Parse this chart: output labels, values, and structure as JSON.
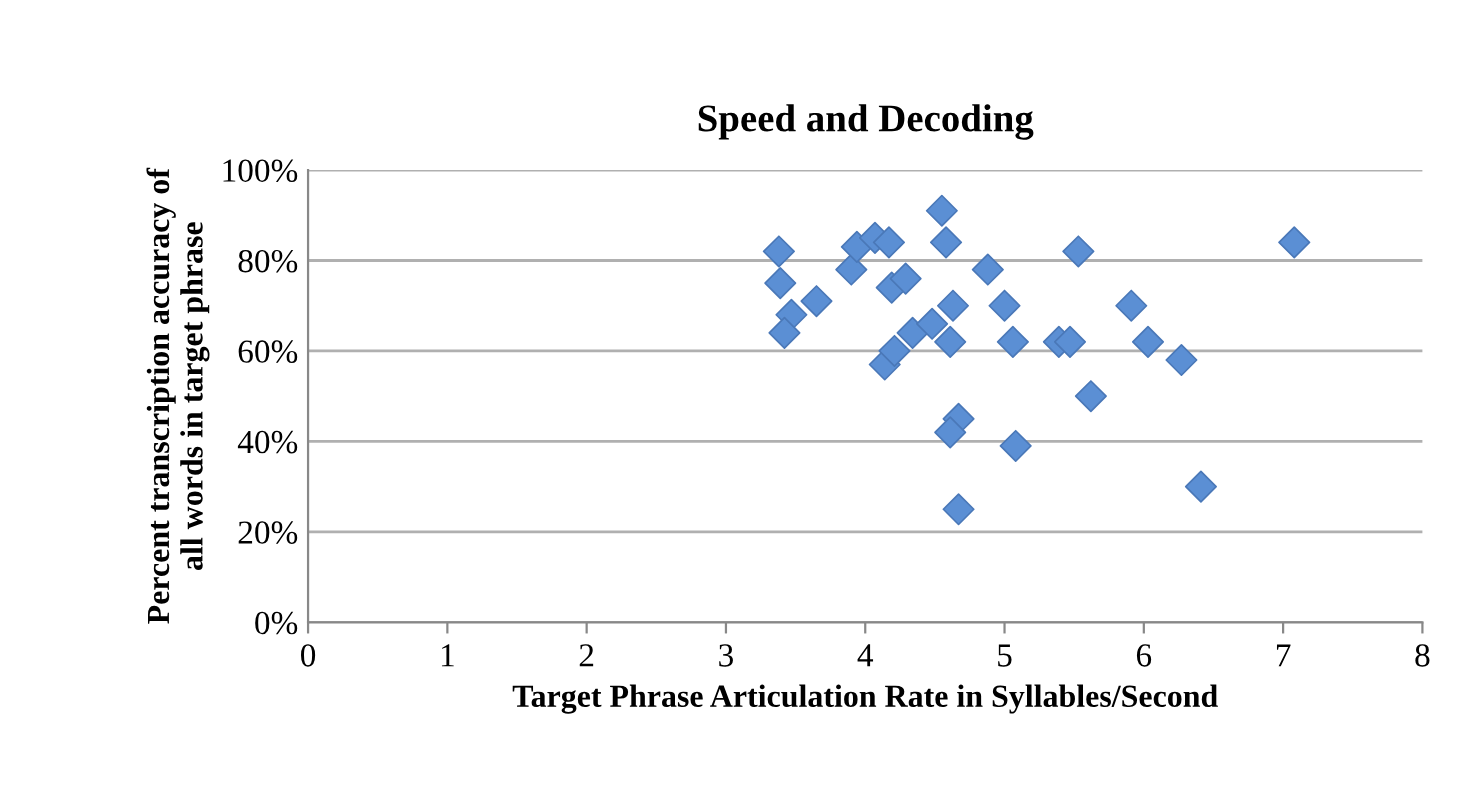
{
  "chart_data": {
    "type": "scatter",
    "title": "Speed and Decoding",
    "xlabel": "Target Phrase Articulation Rate in Syllables/Second",
    "ylabel": "Percent transcription accuracy of\nall words in target phrase",
    "x": [
      3.38,
      3.39,
      3.47,
      3.42,
      3.65,
      3.9,
      3.94,
      4.07,
      4.17,
      4.19,
      4.29,
      4.14,
      4.21,
      4.34,
      4.48,
      4.55,
      4.58,
      4.63,
      4.61,
      4.88,
      5.0,
      5.06,
      4.67,
      4.61,
      5.08,
      4.67,
      5.53,
      5.39,
      5.47,
      5.62,
      5.91,
      6.03,
      6.27,
      6.41,
      7.08
    ],
    "series": [
      {
        "color": "#5b8fd4",
        "values": [
          0.82,
          0.75,
          0.68,
          0.64,
          0.71,
          0.78,
          0.83,
          0.85,
          0.84,
          0.74,
          0.76,
          0.57,
          0.6,
          0.64,
          0.66,
          0.91,
          0.84,
          0.7,
          0.62,
          0.78,
          0.7,
          0.62,
          0.45,
          0.42,
          0.39,
          0.25,
          0.82,
          0.62,
          0.62,
          0.5,
          0.7,
          0.62,
          0.58,
          0.3,
          0.84
        ]
      }
    ],
    "xlim": [
      0,
      8
    ],
    "xticks": [
      0,
      1,
      2,
      3,
      4,
      5,
      6,
      7,
      8
    ],
    "ylim": [
      0,
      1
    ],
    "yticks": [
      {
        "value": 0,
        "label": "0%"
      },
      {
        "value": 0.2,
        "label": "20%"
      },
      {
        "value": 0.4,
        "label": "40%"
      },
      {
        "value": 0.6,
        "label": "60%"
      },
      {
        "value": 0.8,
        "label": "80%"
      },
      {
        "value": 1,
        "label": "100%"
      }
    ],
    "grid": "y",
    "marker": "diamond",
    "legend": false
  }
}
